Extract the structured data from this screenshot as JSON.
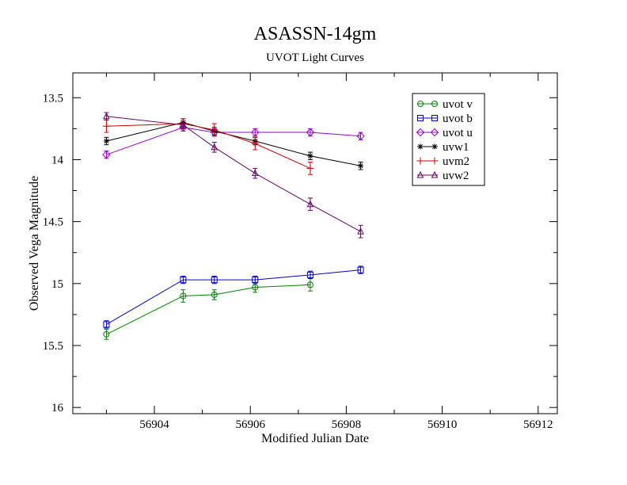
{
  "chart_data": {
    "type": "line",
    "title": "ASASSN-14gm",
    "subtitle": "UVOT Light Curves",
    "xlabel": "Modified Julian Date",
    "ylabel": "Observed Vega Magnitude",
    "xlim": [
      56902.3,
      56912.4
    ],
    "ylim": [
      16.05,
      13.3
    ],
    "y_inverted": true,
    "xticks": [
      56904,
      56906,
      56908,
      56910,
      56912
    ],
    "yticks": [
      13.5,
      14,
      14.5,
      15,
      15.5,
      16
    ],
    "ytick_labels": [
      "13.5",
      "14",
      "14.5",
      "15",
      "15.5",
      "16"
    ],
    "grid": false,
    "legend_position": "top-right",
    "series": [
      {
        "name": "uvot v",
        "color": "#008000",
        "marker": "circle",
        "x": [
          56903.0,
          56904.6,
          56905.25,
          56906.1,
          56907.25
        ],
        "y": [
          15.41,
          15.1,
          15.09,
          15.03,
          15.01
        ],
        "err": [
          0.04,
          0.05,
          0.04,
          0.04,
          0.05
        ]
      },
      {
        "name": "uvot b",
        "color": "#0000cc",
        "marker": "square",
        "x": [
          56903.0,
          56904.6,
          56905.25,
          56906.1,
          56907.25,
          56908.3
        ],
        "y": [
          15.33,
          14.97,
          14.97,
          14.97,
          14.93,
          14.89
        ],
        "err": [
          0.03,
          0.03,
          0.03,
          0.03,
          0.03,
          0.03
        ]
      },
      {
        "name": "uvot u",
        "color": "#9900cc",
        "marker": "diamond",
        "x": [
          56903.0,
          56904.6,
          56905.25,
          56906.1,
          56907.25,
          56908.3
        ],
        "y": [
          13.96,
          13.74,
          13.78,
          13.78,
          13.78,
          13.81
        ],
        "err": [
          0.03,
          0.03,
          0.03,
          0.03,
          0.03,
          0.03
        ]
      },
      {
        "name": "uvw1",
        "color": "#000000",
        "marker": "asterisk",
        "x": [
          56903.0,
          56904.6,
          56905.25,
          56906.1,
          56907.25,
          56908.3
        ],
        "y": [
          13.85,
          13.7,
          13.77,
          13.85,
          13.97,
          14.05
        ],
        "err": [
          0.03,
          0.03,
          0.03,
          0.03,
          0.03,
          0.03
        ]
      },
      {
        "name": "uvm2",
        "color": "#cc0000",
        "marker": "plus",
        "x": [
          56903.0,
          56904.6,
          56905.25,
          56906.1,
          56907.25
        ],
        "y": [
          13.73,
          13.71,
          13.76,
          13.87,
          14.07
        ],
        "err": [
          0.05,
          0.04,
          0.05,
          0.05,
          0.05
        ]
      },
      {
        "name": "uvw2",
        "color": "#660066",
        "marker": "triangle",
        "x": [
          56903.0,
          56904.6,
          56905.25,
          56906.1,
          56907.25,
          56908.3
        ],
        "y": [
          13.65,
          13.72,
          13.9,
          14.11,
          14.36,
          14.58
        ],
        "err": [
          0.03,
          0.03,
          0.04,
          0.04,
          0.05,
          0.05
        ]
      }
    ]
  }
}
